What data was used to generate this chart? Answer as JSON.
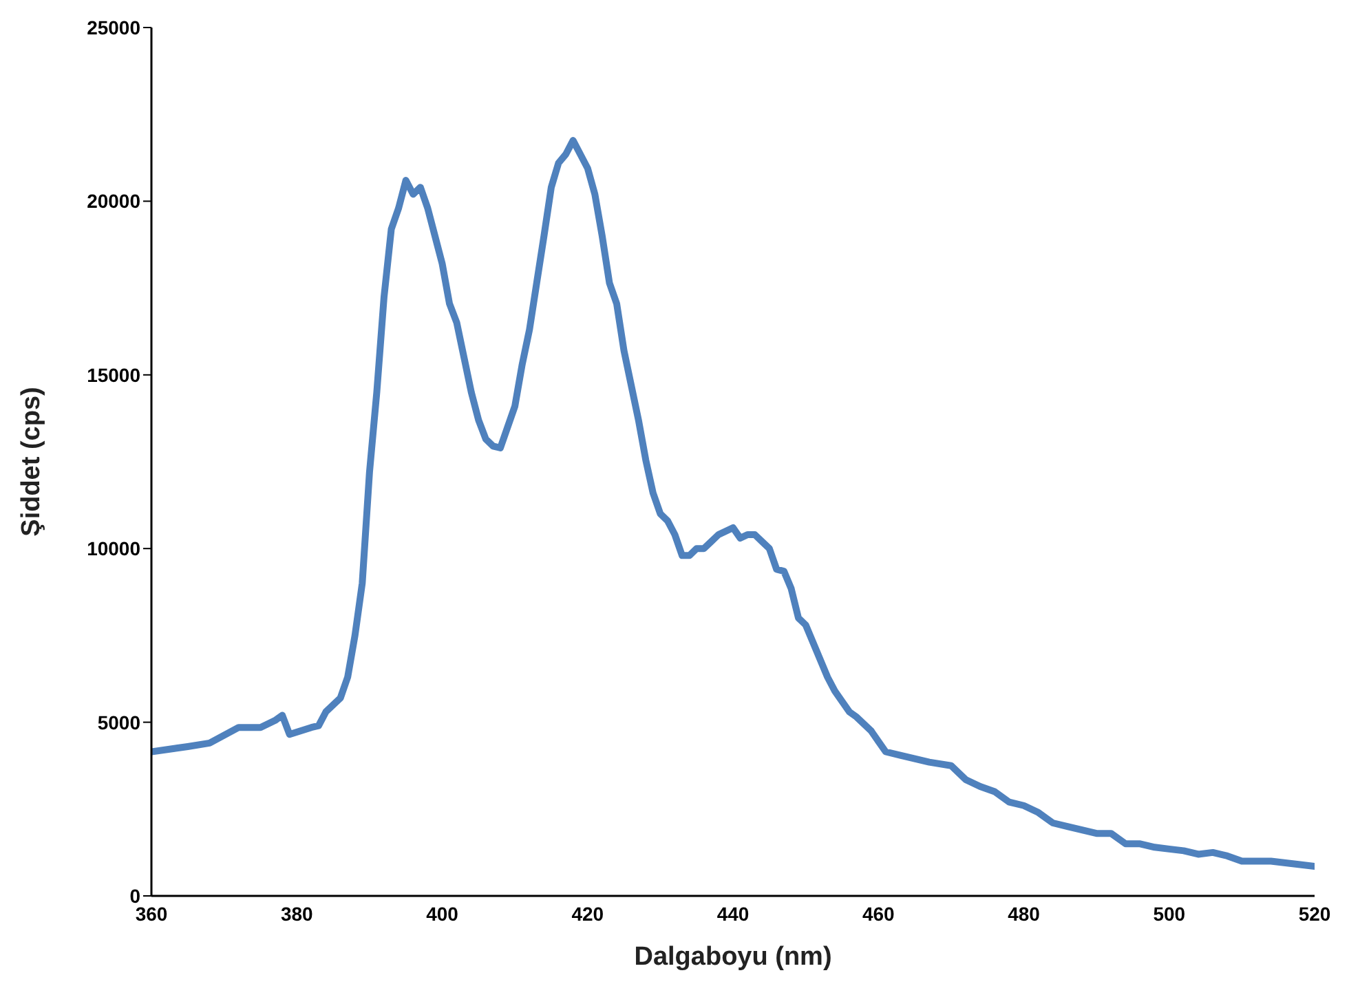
{
  "chart_data": {
    "type": "line",
    "xlabel": "Dalgaboyu (nm)",
    "ylabel": "Şiddet (cps)",
    "xlim": [
      360,
      520
    ],
    "xticks": [
      360,
      380,
      400,
      420,
      440,
      460,
      480,
      500,
      520
    ],
    "ylim": [
      0,
      25000
    ],
    "yticks": [
      0,
      5000,
      10000,
      15000,
      20000,
      25000
    ],
    "grid": false,
    "legend": false,
    "marker": "none",
    "line_style": "solid",
    "series": [
      {
        "color": "#4f81bd",
        "x": [
          360,
          365,
          368,
          372,
          375,
          377,
          378,
          379,
          382,
          383,
          384,
          386,
          387,
          388,
          389,
          390,
          391,
          392,
          393,
          394,
          395,
          396,
          397,
          398,
          399,
          400,
          401,
          402,
          403,
          404,
          405,
          406,
          407,
          408,
          409,
          410,
          411,
          412,
          413,
          414,
          415,
          416,
          417,
          418,
          419,
          420,
          421,
          422,
          423,
          424,
          425,
          426,
          427,
          428,
          429,
          430,
          431,
          432,
          433,
          434,
          435,
          436,
          437,
          438,
          439,
          440,
          441,
          442,
          443,
          444,
          445,
          446,
          447,
          448,
          449,
          450,
          451,
          452,
          453,
          454,
          456,
          457,
          459,
          461,
          463,
          465,
          467,
          470,
          472,
          474,
          476,
          478,
          480,
          482,
          484,
          486,
          488,
          490,
          492,
          494,
          496,
          498,
          500,
          502,
          504,
          506,
          508,
          510,
          512,
          514,
          516,
          518,
          520
        ],
        "values": [
          4150,
          4300,
          4400,
          4850,
          4850,
          5050,
          5200,
          4650,
          4850,
          4900,
          5300,
          5700,
          6300,
          7500,
          9000,
          12200,
          14500,
          17250,
          19200,
          19800,
          20600,
          20200,
          20400,
          19800,
          19000,
          18200,
          17050,
          16500,
          15500,
          14500,
          13700,
          13150,
          12950,
          12900,
          13500,
          14100,
          15300,
          16300,
          17650,
          19000,
          20400,
          21100,
          21350,
          21750,
          21350,
          20950,
          20200,
          19000,
          17650,
          17050,
          15700,
          14700,
          13700,
          12550,
          11600,
          11000,
          10800,
          10400,
          9800,
          9800,
          10000,
          10000,
          10200,
          10400,
          10500,
          10600,
          10300,
          10400,
          10400,
          10200,
          10000,
          9400,
          9350,
          8850,
          8000,
          7800,
          7300,
          6800,
          6300,
          5900,
          5300,
          5150,
          4750,
          4150,
          4050,
          3950,
          3850,
          3750,
          3350,
          3150,
          3000,
          2700,
          2600,
          2400,
          2100,
          2000,
          1900,
          1800,
          1800,
          1500,
          1500,
          1400,
          1350,
          1300,
          1200,
          1250,
          1150,
          1000,
          1000,
          1000,
          950,
          900,
          850
        ]
      }
    ]
  }
}
